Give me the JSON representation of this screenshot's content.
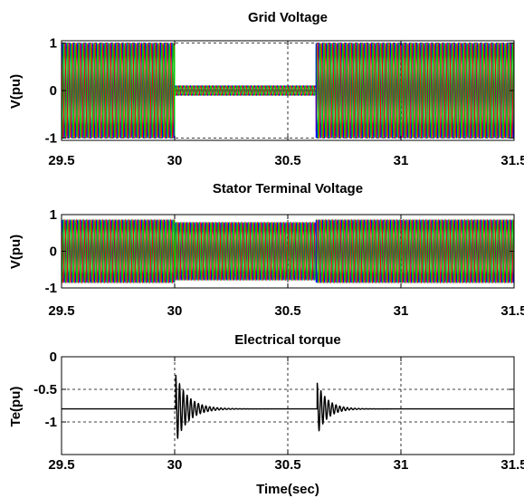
{
  "chart_data": [
    {
      "type": "line",
      "title": "Grid Voltage",
      "xlabel": "",
      "ylabel": "V(pu)",
      "xlim": [
        29.5,
        31.5
      ],
      "ylim": [
        -1.05,
        1.05
      ],
      "xticks": [
        "29.5",
        "30",
        "30.5",
        "31",
        "31.5"
      ],
      "xtick_values": [
        29.5,
        30,
        30.5,
        31,
        31.5
      ],
      "yticks": [
        "1",
        "0",
        "-1"
      ],
      "ytick_values": [
        1,
        0,
        -1
      ],
      "grid": true,
      "grid_style": "dashed",
      "phases": {
        "count": 3,
        "colors": [
          "#0000ff",
          "#ff0000",
          "#00cc00"
        ],
        "frequency_hz": 60
      },
      "segments": [
        {
          "x": [
            29.5,
            30.0
          ],
          "amplitude": 1.0
        },
        {
          "x": [
            30.0,
            30.625
          ],
          "amplitude": 0.1
        },
        {
          "x": [
            30.625,
            31.5
          ],
          "amplitude": 1.0
        }
      ]
    },
    {
      "type": "line",
      "title": "Stator Terminal Voltage",
      "xlabel": "",
      "ylabel": "V(pu)",
      "xlim": [
        29.5,
        31.5
      ],
      "ylim": [
        -1.0,
        1.0
      ],
      "xticks": [
        "29.5",
        "30",
        "30.5",
        "31",
        "31.5"
      ],
      "xtick_values": [
        29.5,
        30,
        30.5,
        31,
        31.5
      ],
      "yticks": [
        "1",
        "0",
        "-1"
      ],
      "ytick_values": [
        1,
        0,
        -1
      ],
      "grid": true,
      "grid_style": "dashed",
      "phases": {
        "count": 3,
        "colors": [
          "#0000ff",
          "#ff0000",
          "#00cc00"
        ],
        "frequency_hz": 60
      },
      "segments": [
        {
          "x": [
            29.5,
            30.0
          ],
          "amplitude": 0.85
        },
        {
          "x": [
            30.0,
            30.625
          ],
          "amplitude": 0.78
        },
        {
          "x": [
            30.625,
            31.5
          ],
          "amplitude": 0.85
        }
      ]
    },
    {
      "type": "line",
      "title": "Electrical torque",
      "xlabel": "Time(sec)",
      "ylabel": "Te(pu)",
      "xlim": [
        29.5,
        31.5
      ],
      "ylim": [
        -1.5,
        0
      ],
      "xticks": [
        "29.5",
        "30",
        "30.5",
        "31",
        "31.5"
      ],
      "xtick_values": [
        29.5,
        30,
        30.5,
        31,
        31.5
      ],
      "yticks": [
        "0",
        "-0.5",
        "-1"
      ],
      "ytick_values": [
        0,
        -0.5,
        -1
      ],
      "grid": true,
      "grid_style": "dashed",
      "series": [
        {
          "color": "#000000",
          "baseline": -0.8,
          "transients": [
            {
              "t0": 30.005,
              "amplitude": 0.52,
              "decay_s": 0.055,
              "frequency_hz": 60
            },
            {
              "t0": 30.63,
              "amplitude": 0.4,
              "decay_s": 0.045,
              "frequency_hz": 60
            }
          ]
        }
      ]
    }
  ]
}
